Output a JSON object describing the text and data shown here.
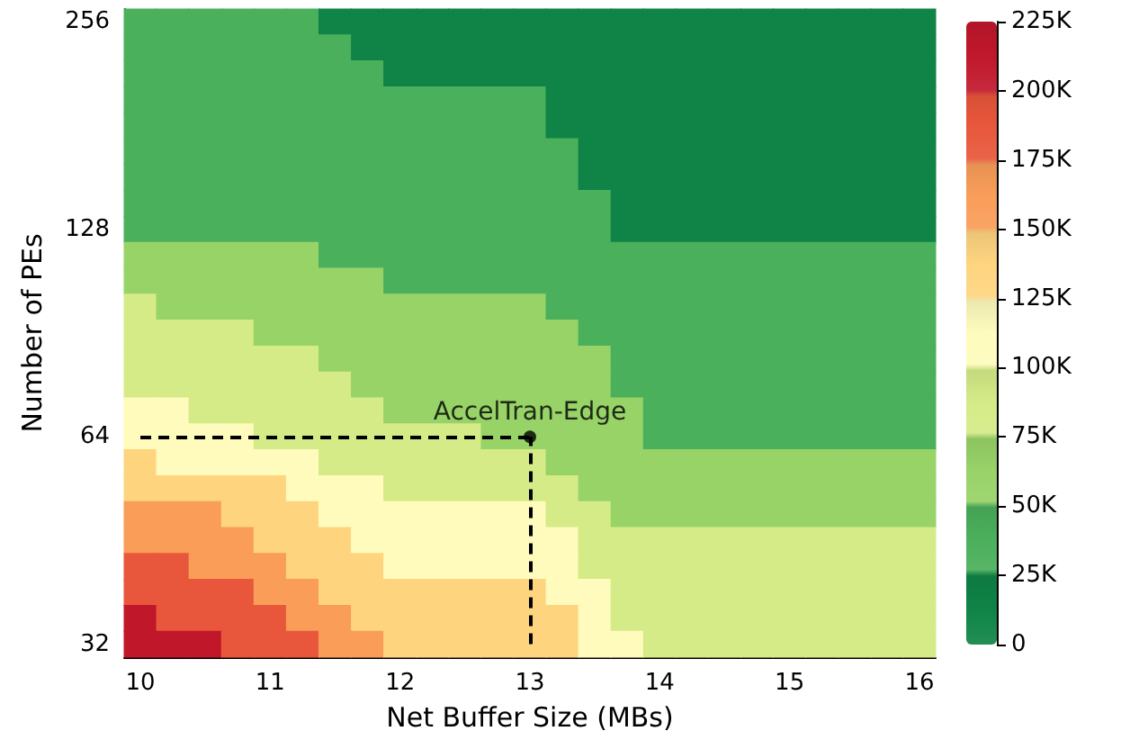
{
  "chart_data": {
    "type": "heatmap",
    "xlabel": "Net Buffer Size (MBs)",
    "ylabel": "Number of PEs",
    "categories": [
      "10",
      null,
      null,
      null,
      "11",
      null,
      null,
      null,
      "12",
      null,
      null,
      null,
      "13",
      null,
      null,
      null,
      "14",
      null,
      null,
      null,
      "15",
      null,
      null,
      null,
      "16"
    ],
    "y_categories": [
      "256",
      null,
      null,
      null,
      null,
      null,
      null,
      null,
      "128",
      null,
      null,
      null,
      null,
      null,
      null,
      null,
      "64",
      null,
      null,
      null,
      null,
      null,
      null,
      null,
      "32"
    ],
    "cells": [
      [
        37500,
        37500,
        37500,
        37500,
        37500,
        37500,
        12500,
        12500,
        12500,
        12500,
        12500,
        12500,
        12500,
        12500,
        12500,
        12500,
        12500,
        12500,
        12500,
        12500,
        12500,
        12500,
        12500,
        12500,
        12500
      ],
      [
        37500,
        37500,
        37500,
        37500,
        37500,
        37500,
        37500,
        12500,
        12500,
        12500,
        12500,
        12500,
        12500,
        12500,
        12500,
        12500,
        12500,
        12500,
        12500,
        12500,
        12500,
        12500,
        12500,
        12500,
        12500
      ],
      [
        37500,
        37500,
        37500,
        37500,
        37500,
        37500,
        37500,
        37500,
        12500,
        12500,
        12500,
        12500,
        12500,
        12500,
        12500,
        12500,
        12500,
        12500,
        12500,
        12500,
        12500,
        12500,
        12500,
        12500,
        12500
      ],
      [
        37500,
        37500,
        37500,
        37500,
        37500,
        37500,
        37500,
        37500,
        37500,
        37500,
        37500,
        37500,
        37500,
        12500,
        12500,
        12500,
        12500,
        12500,
        12500,
        12500,
        12500,
        12500,
        12500,
        12500,
        12500
      ],
      [
        37500,
        37500,
        37500,
        37500,
        37500,
        37500,
        37500,
        37500,
        37500,
        37500,
        37500,
        37500,
        37500,
        12500,
        12500,
        12500,
        12500,
        12500,
        12500,
        12500,
        12500,
        12500,
        12500,
        12500,
        12500
      ],
      [
        37500,
        37500,
        37500,
        37500,
        37500,
        37500,
        37500,
        37500,
        37500,
        37500,
        37500,
        37500,
        37500,
        37500,
        12500,
        12500,
        12500,
        12500,
        12500,
        12500,
        12500,
        12500,
        12500,
        12500,
        12500
      ],
      [
        37500,
        37500,
        37500,
        37500,
        37500,
        37500,
        37500,
        37500,
        37500,
        37500,
        37500,
        37500,
        37500,
        37500,
        12500,
        12500,
        12500,
        12500,
        12500,
        12500,
        12500,
        12500,
        12500,
        12500,
        12500
      ],
      [
        37500,
        37500,
        37500,
        37500,
        37500,
        37500,
        37500,
        37500,
        37500,
        37500,
        37500,
        37500,
        37500,
        37500,
        37500,
        12500,
        12500,
        12500,
        12500,
        12500,
        12500,
        12500,
        12500,
        12500,
        12500
      ],
      [
        37500,
        37500,
        37500,
        37500,
        37500,
        37500,
        37500,
        37500,
        37500,
        37500,
        37500,
        37500,
        37500,
        37500,
        37500,
        12500,
        12500,
        12500,
        12500,
        12500,
        12500,
        12500,
        12500,
        12500,
        12500
      ],
      [
        62500,
        62500,
        62500,
        62500,
        62500,
        62500,
        37500,
        37500,
        37500,
        37500,
        37500,
        37500,
        37500,
        37500,
        37500,
        37500,
        37500,
        37500,
        37500,
        37500,
        37500,
        37500,
        37500,
        37500,
        37500
      ],
      [
        62500,
        62500,
        62500,
        62500,
        62500,
        62500,
        62500,
        62500,
        37500,
        37500,
        37500,
        37500,
        37500,
        37500,
        37500,
        37500,
        37500,
        37500,
        37500,
        37500,
        37500,
        37500,
        37500,
        37500,
        37500
      ],
      [
        87500,
        62500,
        62500,
        62500,
        62500,
        62500,
        62500,
        62500,
        62500,
        62500,
        62500,
        62500,
        62500,
        37500,
        37500,
        37500,
        37500,
        37500,
        37500,
        37500,
        37500,
        37500,
        37500,
        37500,
        37500
      ],
      [
        87500,
        87500,
        87500,
        87500,
        62500,
        62500,
        62500,
        62500,
        62500,
        62500,
        62500,
        62500,
        62500,
        62500,
        37500,
        37500,
        37500,
        37500,
        37500,
        37500,
        37500,
        37500,
        37500,
        37500,
        37500
      ],
      [
        87500,
        87500,
        87500,
        87500,
        87500,
        87500,
        62500,
        62500,
        62500,
        62500,
        62500,
        62500,
        62500,
        62500,
        62500,
        37500,
        37500,
        37500,
        37500,
        37500,
        37500,
        37500,
        37500,
        37500,
        37500
      ],
      [
        87500,
        87500,
        87500,
        87500,
        87500,
        87500,
        87500,
        62500,
        62500,
        62500,
        62500,
        62500,
        62500,
        62500,
        62500,
        37500,
        37500,
        37500,
        37500,
        37500,
        37500,
        37500,
        37500,
        37500,
        37500
      ],
      [
        112500,
        112500,
        87500,
        87500,
        87500,
        87500,
        87500,
        87500,
        62500,
        62500,
        62500,
        62500,
        62500,
        62500,
        62500,
        62500,
        37500,
        37500,
        37500,
        37500,
        37500,
        37500,
        37500,
        37500,
        37500
      ],
      [
        112500,
        112500,
        112500,
        112500,
        87500,
        87500,
        87500,
        87500,
        87500,
        87500,
        87500,
        62500,
        62500,
        62500,
        62500,
        62500,
        37500,
        37500,
        37500,
        37500,
        37500,
        37500,
        37500,
        37500,
        37500
      ],
      [
        137500,
        112500,
        112500,
        112500,
        112500,
        112500,
        87500,
        87500,
        87500,
        87500,
        87500,
        87500,
        87500,
        62500,
        62500,
        62500,
        62500,
        62500,
        62500,
        62500,
        62500,
        62500,
        62500,
        62500,
        62500
      ],
      [
        137500,
        137500,
        137500,
        137500,
        137500,
        112500,
        112500,
        112500,
        87500,
        87500,
        87500,
        87500,
        87500,
        87500,
        62500,
        62500,
        62500,
        62500,
        62500,
        62500,
        62500,
        62500,
        62500,
        62500,
        62500
      ],
      [
        162500,
        162500,
        162500,
        137500,
        137500,
        137500,
        112500,
        112500,
        112500,
        112500,
        112500,
        112500,
        112500,
        87500,
        87500,
        62500,
        62500,
        62500,
        62500,
        62500,
        62500,
        62500,
        62500,
        62500,
        62500
      ],
      [
        162500,
        162500,
        162500,
        162500,
        137500,
        137500,
        137500,
        112500,
        112500,
        112500,
        112500,
        112500,
        112500,
        112500,
        87500,
        87500,
        87500,
        87500,
        87500,
        87500,
        87500,
        87500,
        87500,
        87500,
        87500
      ],
      [
        187500,
        187500,
        162500,
        162500,
        162500,
        137500,
        137500,
        137500,
        112500,
        112500,
        112500,
        112500,
        112500,
        112500,
        87500,
        87500,
        87500,
        87500,
        87500,
        87500,
        87500,
        87500,
        87500,
        87500,
        87500
      ],
      [
        187500,
        187500,
        187500,
        187500,
        162500,
        162500,
        137500,
        137500,
        137500,
        137500,
        137500,
        137500,
        137500,
        112500,
        112500,
        87500,
        87500,
        87500,
        87500,
        87500,
        87500,
        87500,
        87500,
        87500,
        87500
      ],
      [
        212500,
        187500,
        187500,
        187500,
        187500,
        162500,
        162500,
        137500,
        137500,
        137500,
        137500,
        137500,
        137500,
        137500,
        112500,
        87500,
        87500,
        87500,
        87500,
        87500,
        87500,
        87500,
        87500,
        87500,
        87500
      ],
      [
        212500,
        212500,
        212500,
        187500,
        187500,
        187500,
        162500,
        162500,
        137500,
        137500,
        137500,
        137500,
        137500,
        137500,
        112500,
        112500,
        87500,
        87500,
        87500,
        87500,
        87500,
        87500,
        87500,
        87500,
        87500
      ]
    ],
    "clim": [
      0,
      225000
    ],
    "cticks": [
      {
        "value": 0,
        "label": "0"
      },
      {
        "value": 25000,
        "label": "25K"
      },
      {
        "value": 50000,
        "label": "50K"
      },
      {
        "value": 75000,
        "label": "75K"
      },
      {
        "value": 100000,
        "label": "100K"
      },
      {
        "value": 125000,
        "label": "125K"
      },
      {
        "value": 150000,
        "label": "150K"
      },
      {
        "value": 175000,
        "label": "175K"
      },
      {
        "value": 200000,
        "label": "200K"
      },
      {
        "value": 225000,
        "label": "225K"
      }
    ],
    "colors": [
      "#0f8446",
      "#4bb05c",
      "#98d368",
      "#d5eb87",
      "#fefbbd",
      "#fed47f",
      "#f99d59",
      "#e8573b",
      "#c1172b"
    ],
    "annotations": [
      {
        "text": "AccelTran-Edge",
        "x": "13",
        "y": "64"
      }
    ]
  }
}
